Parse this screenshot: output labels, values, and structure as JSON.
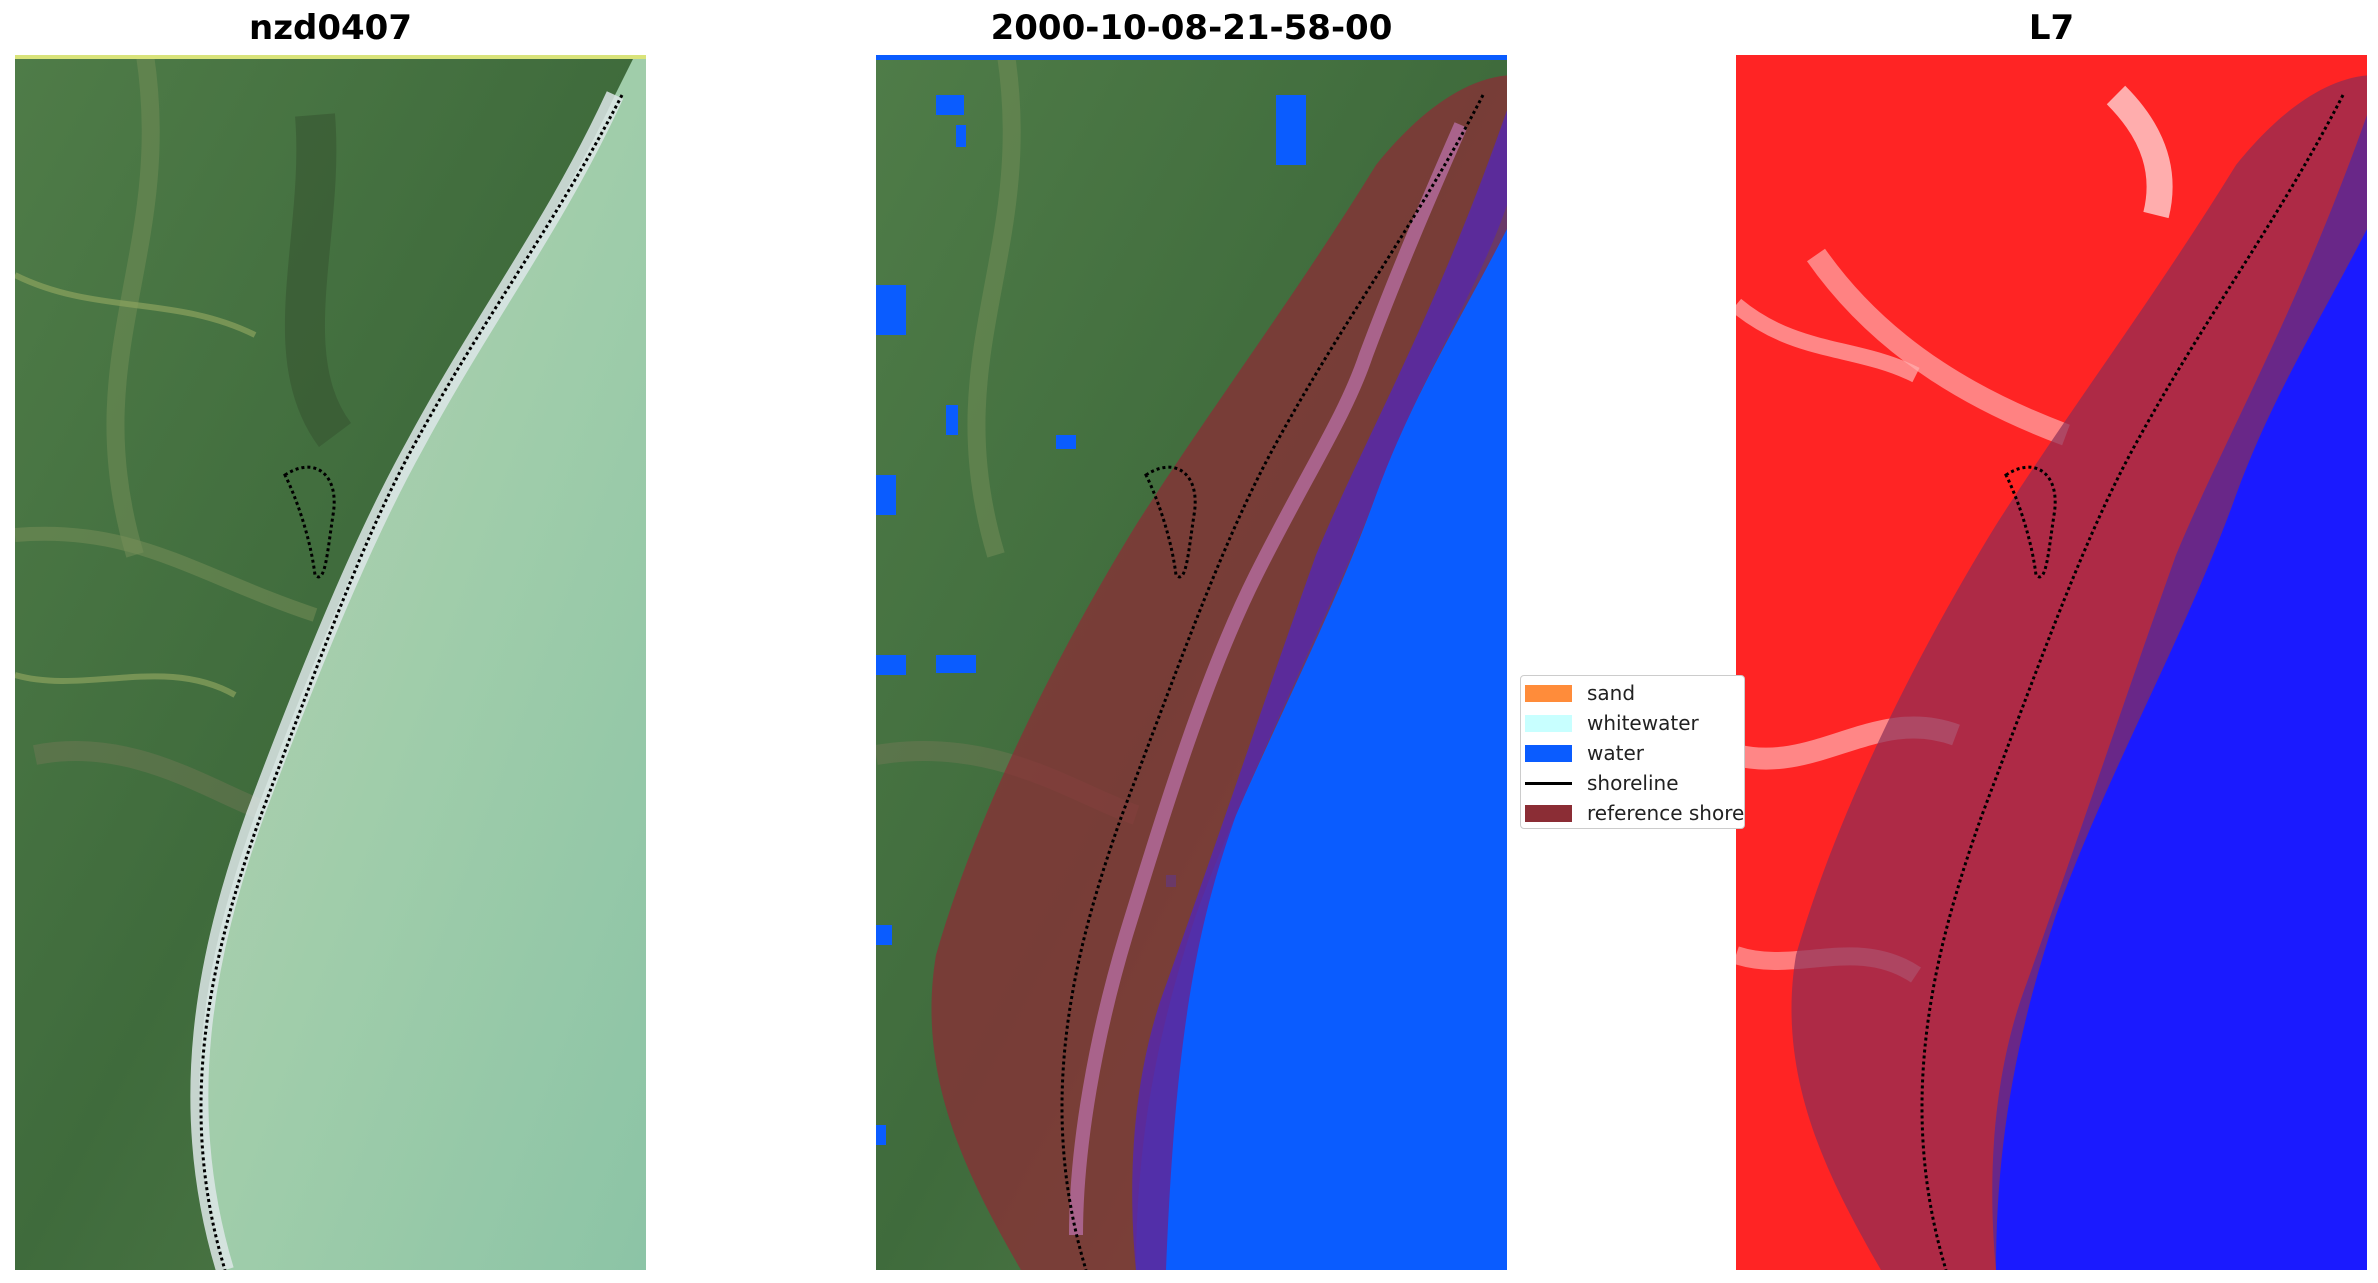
{
  "panels": [
    {
      "title": "nzd0407",
      "image": "rgb-satellite-image"
    },
    {
      "title": "2000-10-08-21-58-00",
      "image": "classified-image"
    },
    {
      "title": "L7",
      "image": "mndwi-image"
    }
  ],
  "legend": {
    "items": [
      {
        "label": "sand",
        "color": "#FF8C3A"
      },
      {
        "label": "whitewater",
        "color": "#C8FFFF"
      },
      {
        "label": "water",
        "color": "#0A5CFF"
      },
      {
        "label": "shoreline",
        "color": "#000000"
      },
      {
        "label": "reference shoreline",
        "color": "#8B2D35"
      }
    ]
  },
  "colors": {
    "land": "#4E7B45",
    "sea_rgb": "#9FCCA8",
    "water_class": "#0A5CFF",
    "buffer": "#8B2D35",
    "mndwi_land": "#FF2020",
    "mndwi_water": "#1A1AFF"
  }
}
